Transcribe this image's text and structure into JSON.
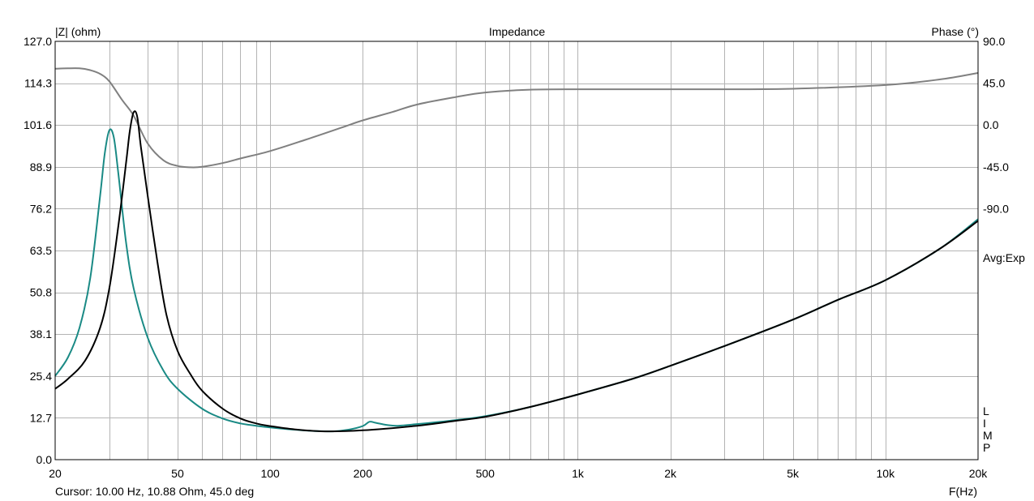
{
  "chart_data": {
    "type": "line",
    "title": "Impedance",
    "xlabel": "F(Hz)",
    "ylabel": "|Z| (ohm)",
    "y2label": "Phase (°)",
    "x_scale": "log",
    "xlim": [
      20,
      20000
    ],
    "ylim": [
      0,
      127
    ],
    "y2lim": [
      -360,
      90
    ],
    "x_ticks": [
      {
        "value": 20,
        "label": "20"
      },
      {
        "value": 50,
        "label": "50"
      },
      {
        "value": 100,
        "label": "100"
      },
      {
        "value": 200,
        "label": "200"
      },
      {
        "value": 500,
        "label": "500"
      },
      {
        "value": 1000,
        "label": "1k"
      },
      {
        "value": 2000,
        "label": "2k"
      },
      {
        "value": 5000,
        "label": "5k"
      },
      {
        "value": 10000,
        "label": "10k"
      },
      {
        "value": 20000,
        "label": "20k"
      }
    ],
    "y_ticks": [
      "0.0",
      "12.7",
      "25.4",
      "38.1",
      "50.8",
      "63.5",
      "76.2",
      "88.9",
      "101.6",
      "114.3",
      "127.0"
    ],
    "y2_ticks": [
      {
        "value": 90,
        "label": "90.0"
      },
      {
        "value": 45,
        "label": "45.0"
      },
      {
        "value": 0,
        "label": "0.0"
      },
      {
        "value": -45,
        "label": "-45.0"
      },
      {
        "value": -90,
        "label": "-90.0"
      }
    ],
    "grid": true,
    "series": [
      {
        "axis": "left",
        "color": "#1a8a85",
        "points": [
          [
            20,
            25.4
          ],
          [
            22,
            31
          ],
          [
            24,
            40
          ],
          [
            26,
            55
          ],
          [
            28,
            80
          ],
          [
            29,
            93
          ],
          [
            30,
            100
          ],
          [
            31,
            98
          ],
          [
            32,
            88
          ],
          [
            34,
            66
          ],
          [
            36,
            52
          ],
          [
            40,
            37
          ],
          [
            45,
            27
          ],
          [
            50,
            21.5
          ],
          [
            60,
            15.5
          ],
          [
            70,
            12.5
          ],
          [
            80,
            11
          ],
          [
            90,
            10.3
          ],
          [
            100,
            9.8
          ],
          [
            120,
            9.1
          ],
          [
            140,
            8.7
          ],
          [
            160,
            8.6
          ],
          [
            180,
            9.1
          ],
          [
            200,
            10.2
          ],
          [
            210,
            11.5
          ],
          [
            220,
            11.2
          ],
          [
            240,
            10.5
          ],
          [
            260,
            10.3
          ],
          [
            300,
            10.8
          ],
          [
            400,
            12
          ],
          [
            500,
            13.2
          ],
          [
            700,
            16
          ],
          [
            1000,
            19.8
          ],
          [
            1500,
            24.5
          ],
          [
            2000,
            28.5
          ],
          [
            3000,
            34.5
          ],
          [
            5000,
            42.5
          ],
          [
            7000,
            48.5
          ],
          [
            10000,
            54.5
          ],
          [
            15000,
            64
          ],
          [
            20000,
            73
          ]
        ]
      },
      {
        "axis": "left",
        "color": "#000000",
        "points": [
          [
            20,
            21.5
          ],
          [
            22,
            24.5
          ],
          [
            25,
            30
          ],
          [
            28,
            40
          ],
          [
            30,
            52
          ],
          [
            32,
            70
          ],
          [
            34,
            90
          ],
          [
            35,
            100
          ],
          [
            36,
            105.5
          ],
          [
            37,
            104
          ],
          [
            38,
            95
          ],
          [
            40,
            80
          ],
          [
            43,
            60
          ],
          [
            46,
            44
          ],
          [
            50,
            33
          ],
          [
            55,
            26
          ],
          [
            60,
            21
          ],
          [
            70,
            15.5
          ],
          [
            80,
            12.5
          ],
          [
            90,
            11
          ],
          [
            100,
            10.2
          ],
          [
            120,
            9.2
          ],
          [
            150,
            8.6
          ],
          [
            200,
            8.9
          ],
          [
            300,
            10.3
          ],
          [
            400,
            11.8
          ],
          [
            500,
            13
          ],
          [
            700,
            16
          ],
          [
            1000,
            19.8
          ],
          [
            1500,
            24.5
          ],
          [
            2000,
            28.5
          ],
          [
            3000,
            34.5
          ],
          [
            5000,
            42.5
          ],
          [
            7000,
            48.5
          ],
          [
            10000,
            54.5
          ],
          [
            15000,
            64
          ],
          [
            20000,
            72.5
          ]
        ]
      },
      {
        "axis": "right",
        "color": "#808080",
        "points": [
          [
            20,
            60.5
          ],
          [
            22,
            61
          ],
          [
            24,
            61
          ],
          [
            26,
            59
          ],
          [
            28,
            55
          ],
          [
            30,
            47
          ],
          [
            33,
            27
          ],
          [
            36,
            10
          ],
          [
            40,
            -20
          ],
          [
            45,
            -38
          ],
          [
            50,
            -44
          ],
          [
            55,
            -45.5
          ],
          [
            60,
            -45
          ],
          [
            70,
            -41
          ],
          [
            80,
            -36
          ],
          [
            100,
            -28
          ],
          [
            130,
            -16
          ],
          [
            170,
            -3
          ],
          [
            200,
            5
          ],
          [
            250,
            14
          ],
          [
            300,
            22
          ],
          [
            400,
            30
          ],
          [
            500,
            35
          ],
          [
            700,
            38
          ],
          [
            1000,
            38.5
          ],
          [
            2000,
            38.5
          ],
          [
            3000,
            38.5
          ],
          [
            5000,
            39
          ],
          [
            10000,
            43
          ],
          [
            15000,
            49
          ],
          [
            20000,
            56
          ]
        ]
      }
    ]
  },
  "labels": {
    "title": "Impedance",
    "y_left": "|Z| (ohm)",
    "y_right": "Phase (°)",
    "x_axis": "F(Hz)",
    "cursor": "Cursor: 10.00 Hz, 10.88 Ohm, 45.0 deg",
    "avg": "Avg:Exp",
    "limp": [
      "L",
      "I",
      "M",
      "P"
    ]
  },
  "colors": {
    "grid": "#b4b4b4",
    "frame": "#000000"
  }
}
